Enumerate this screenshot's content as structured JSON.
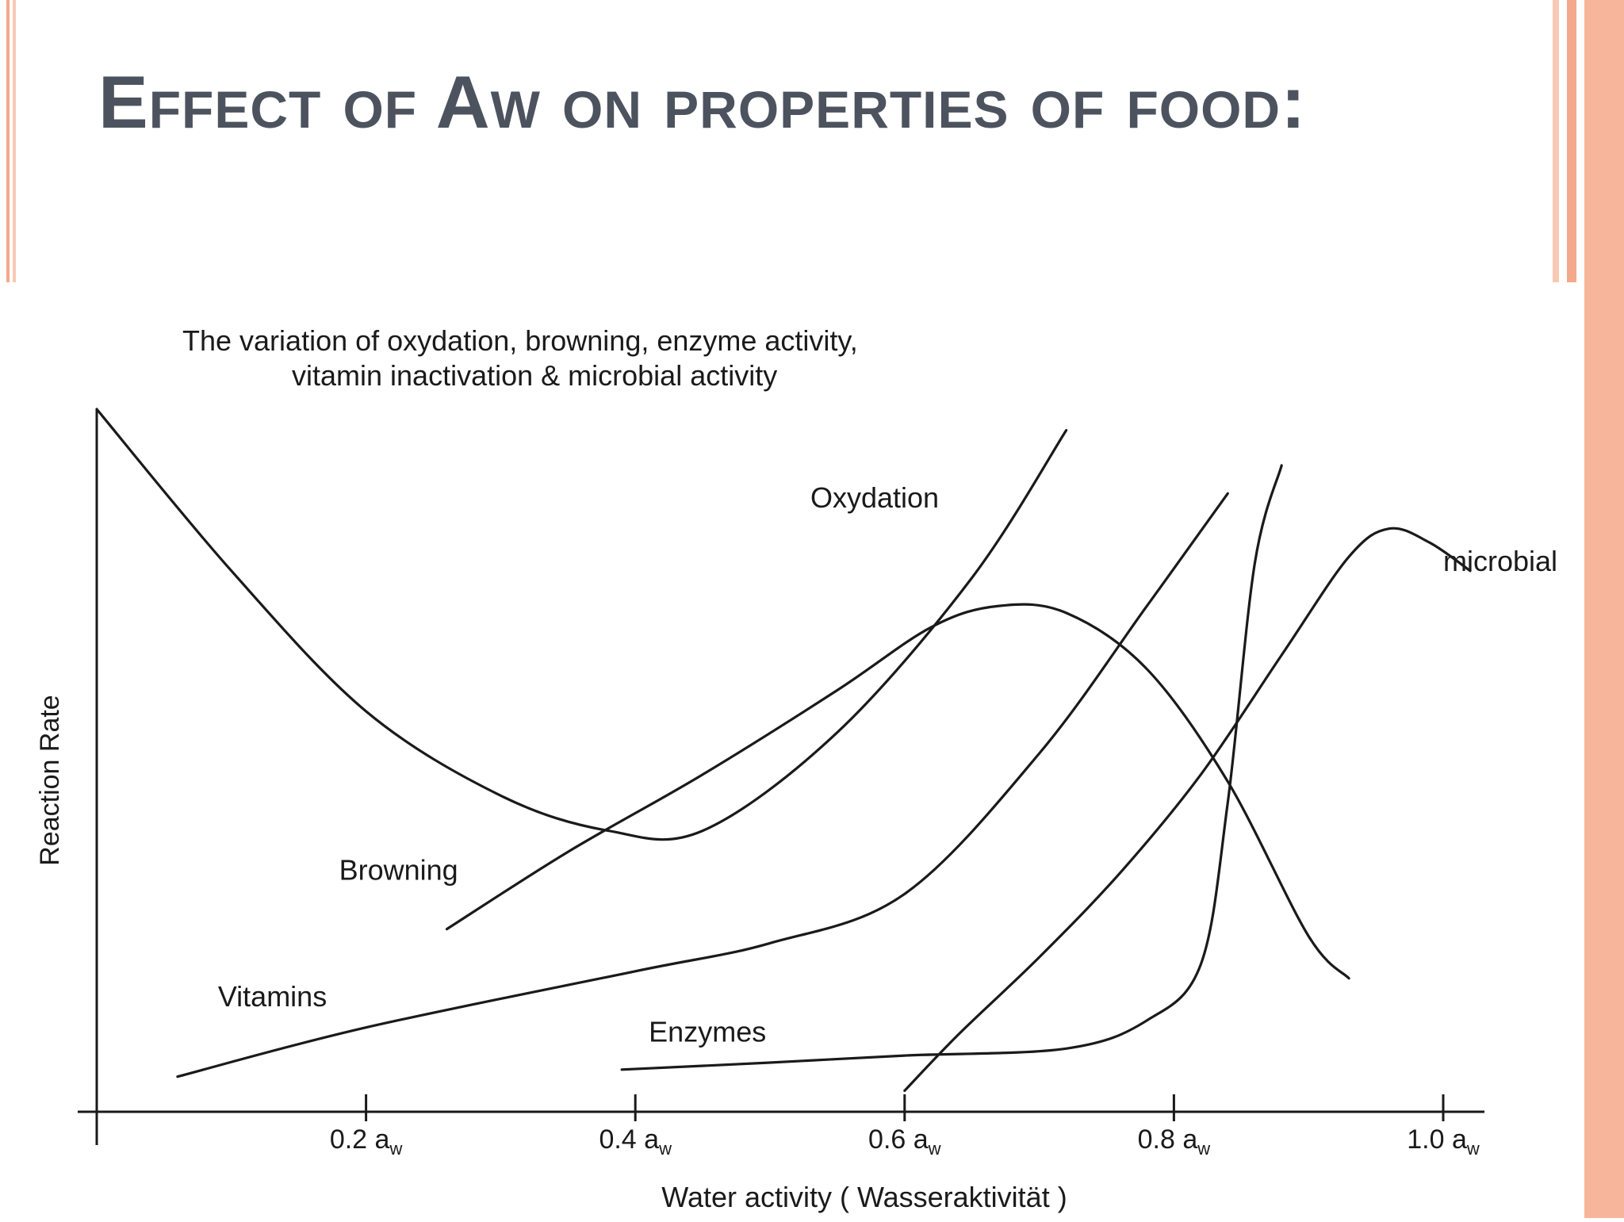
{
  "slide": {
    "title": "Effect of Aw on properties of food:",
    "accent_color": "#f4a98c",
    "title_color": "#4d535e"
  },
  "chart_data": {
    "type": "line",
    "title": "The variation of oxydation, browning, enzyme activity,",
    "subtitle": "vitamin inactivation & microbial activity",
    "xlabel": "Water activity  ( Wasseraktivität )",
    "ylabel": "Reaction Rate",
    "xlim": [
      0,
      1.0
    ],
    "ylim": [
      0,
      100
    ],
    "xticks": [
      {
        "value": 0.2,
        "num": "0.2 a",
        "sub": "w"
      },
      {
        "value": 0.4,
        "num": "0.4 a",
        "sub": "w"
      },
      {
        "value": 0.6,
        "num": "0.6 a",
        "sub": "w"
      },
      {
        "value": 0.8,
        "num": "0.8 a",
        "sub": "w"
      },
      {
        "value": 1.0,
        "num": "1.0 a",
        "sub": "w"
      }
    ],
    "grid": false,
    "series": [
      {
        "name": "Oxydation",
        "label_at": [
          0.53,
          86
        ],
        "points": [
          [
            0,
            100
          ],
          [
            0.1,
            77
          ],
          [
            0.2,
            57
          ],
          [
            0.3,
            45
          ],
          [
            0.38,
            40
          ],
          [
            0.45,
            40
          ],
          [
            0.55,
            54
          ],
          [
            0.65,
            76
          ],
          [
            0.72,
            97
          ]
        ]
      },
      {
        "name": "Browning",
        "label_at": [
          0.18,
          33
        ],
        "points": [
          [
            0.26,
            26
          ],
          [
            0.35,
            37
          ],
          [
            0.45,
            48
          ],
          [
            0.55,
            60
          ],
          [
            0.62,
            69
          ],
          [
            0.67,
            72
          ],
          [
            0.72,
            71
          ],
          [
            0.78,
            63
          ],
          [
            0.84,
            47
          ],
          [
            0.9,
            25
          ],
          [
            0.93,
            19
          ]
        ]
      },
      {
        "name": "Vitamins",
        "label_at": [
          0.09,
          15
        ],
        "points": [
          [
            0.06,
            5
          ],
          [
            0.2,
            12
          ],
          [
            0.4,
            20
          ],
          [
            0.5,
            24
          ],
          [
            0.6,
            31
          ],
          [
            0.7,
            51
          ],
          [
            0.78,
            72
          ],
          [
            0.84,
            88
          ]
        ]
      },
      {
        "name": "Enzymes",
        "label_at": [
          0.41,
          10
        ],
        "points": [
          [
            0.39,
            6
          ],
          [
            0.5,
            7
          ],
          [
            0.6,
            8
          ],
          [
            0.72,
            9
          ],
          [
            0.78,
            13
          ],
          [
            0.82,
            21
          ],
          [
            0.84,
            44
          ],
          [
            0.86,
            78
          ],
          [
            0.88,
            92
          ]
        ]
      },
      {
        "name": "microbial",
        "label_at": [
          1.0,
          77
        ],
        "points": [
          [
            0.6,
            3
          ],
          [
            0.64,
            11
          ],
          [
            0.7,
            22
          ],
          [
            0.76,
            34
          ],
          [
            0.82,
            48
          ],
          [
            0.88,
            65
          ],
          [
            0.93,
            79
          ],
          [
            0.96,
            83
          ],
          [
            0.99,
            81
          ],
          [
            1.02,
            77
          ]
        ]
      }
    ]
  }
}
